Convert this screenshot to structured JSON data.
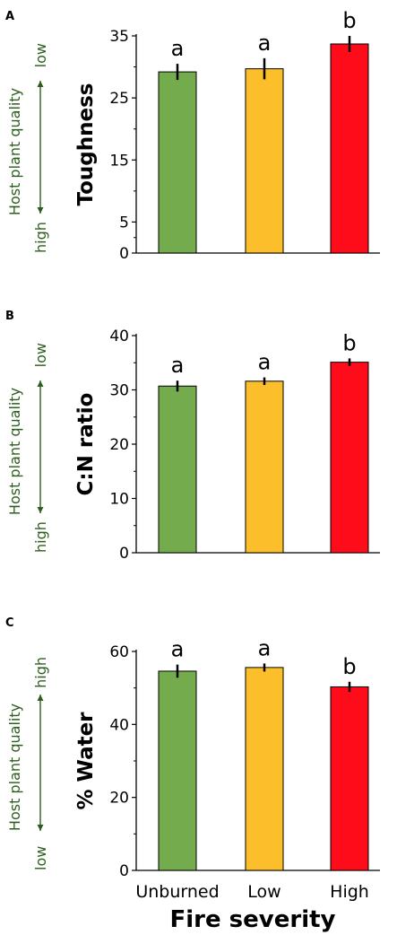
{
  "chart_data": [
    {
      "panel_label": "A",
      "type": "bar",
      "categories": [
        "Unburned",
        "Low",
        "High"
      ],
      "values": [
        29.2,
        29.7,
        33.7
      ],
      "errors": [
        1.3,
        1.7,
        1.3
      ],
      "significance": [
        "a",
        "a",
        "b"
      ],
      "ylabel": "Toughness",
      "yticks": [
        0,
        5,
        15,
        25,
        35
      ],
      "ylim": [
        0,
        35
      ],
      "side_label": "Host plant quality",
      "side_top": "low",
      "side_bottom": "high"
    },
    {
      "panel_label": "B",
      "type": "bar",
      "categories": [
        "Unburned",
        "Low",
        "High"
      ],
      "values": [
        30.7,
        31.6,
        35.1
      ],
      "errors": [
        1.0,
        0.7,
        0.7
      ],
      "significance": [
        "a",
        "a",
        "b"
      ],
      "ylabel": "C:N ratio",
      "yticks": [
        0,
        10,
        20,
        30,
        40
      ],
      "ylim": [
        0,
        40
      ],
      "side_label": "Host plant quality",
      "side_top": "low",
      "side_bottom": "high"
    },
    {
      "panel_label": "C",
      "type": "bar",
      "categories": [
        "Unburned",
        "Low",
        "High"
      ],
      "values": [
        54.6,
        55.6,
        50.3
      ],
      "errors": [
        1.8,
        1.1,
        1.4
      ],
      "significance": [
        "a",
        "a",
        "b"
      ],
      "ylabel": "% Water",
      "yticks": [
        0,
        20,
        40,
        60
      ],
      "ylim": [
        0,
        60
      ],
      "side_label": "Host plant quality",
      "side_top": "high",
      "side_bottom": "low"
    }
  ],
  "xlabel": "Fire severity",
  "colors": {
    "bars": [
      "#74ac4d",
      "#fdbe2c",
      "#fe0c1a"
    ],
    "side_text": "#2e5e1e",
    "axis": "#000000"
  }
}
